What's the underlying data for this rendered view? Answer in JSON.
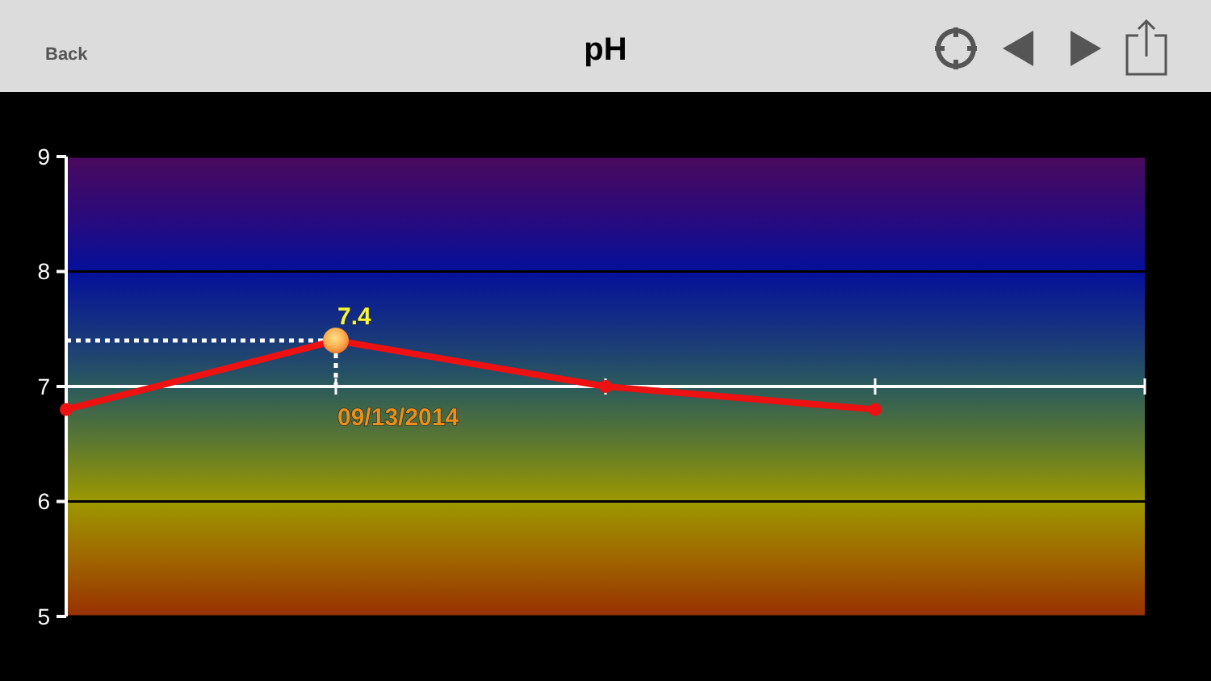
{
  "chart_data": {
    "type": "line",
    "title": "pH",
    "annotations": [
      "Back"
    ],
    "categories": [
      null,
      "09/13/2014",
      null,
      null,
      null
    ],
    "values": [
      6.8,
      7.4,
      7.0,
      6.8,
      null
    ],
    "color": "#ee1111",
    "value_labels": [
      null,
      "7.4",
      null,
      null,
      null
    ],
    "ylim": [
      5,
      9
    ],
    "yticks": [
      5,
      6,
      7,
      8,
      9
    ],
    "grid": "y",
    "marker": "circle",
    "ref_lines": [
      {
        "axis": "y",
        "value": 7,
        "color": "#ffffff"
      },
      {
        "axis": "y",
        "value": 7.4,
        "color": "#ffffff",
        "line_style": "dotted"
      }
    ]
  }
}
